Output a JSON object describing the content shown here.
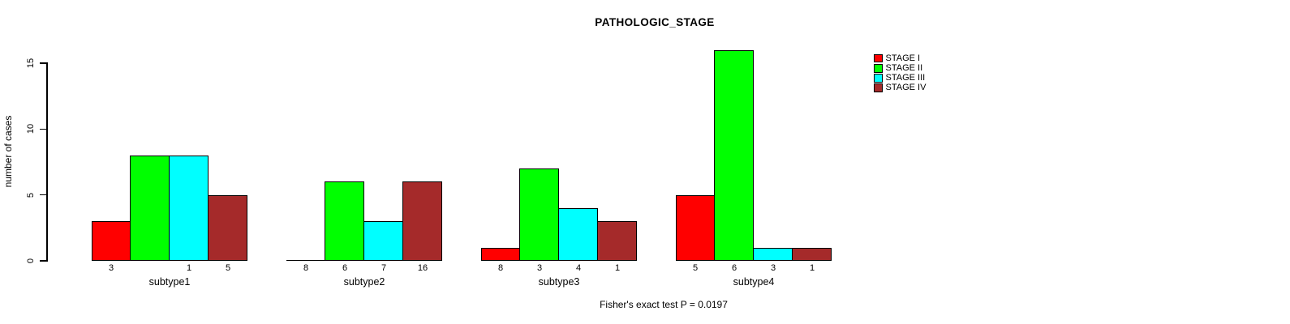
{
  "title": "PATHOLOGIC_STAGE",
  "footer": "Fisher's exact test P = 0.0197",
  "chart_data": {
    "type": "bar",
    "title": "PATHOLOGIC_STAGE",
    "xlabel": "",
    "ylabel": "number of cases",
    "categories": [
      "subtype1",
      "subtype2",
      "subtype3",
      "subtype4"
    ],
    "series": [
      {
        "name": "STAGE I",
        "color": "#ff0000",
        "values": [
          3,
          0,
          1,
          5
        ]
      },
      {
        "name": "STAGE II",
        "color": "#00ff00",
        "values": [
          8,
          6,
          7,
          16
        ]
      },
      {
        "name": "STAGE III",
        "color": "#00ffff",
        "values": [
          8,
          3,
          4,
          1
        ]
      },
      {
        "name": "STAGE IV",
        "color": "#a52a2a",
        "values": [
          5,
          6,
          3,
          1
        ]
      }
    ],
    "bar_value_labels": [
      [
        "3",
        "8",
        "8",
        "5"
      ],
      [
        "",
        "6",
        "3",
        "6"
      ],
      [
        "1",
        "7",
        "4",
        "3"
      ],
      [
        "5",
        "16",
        "1",
        "1"
      ]
    ],
    "yticks": [
      0,
      5,
      10,
      15
    ],
    "ylim": [
      0,
      16.5
    ],
    "grid": false,
    "legend_position": "top-right",
    "annotation": "Fisher's exact test P = 0.0197"
  }
}
